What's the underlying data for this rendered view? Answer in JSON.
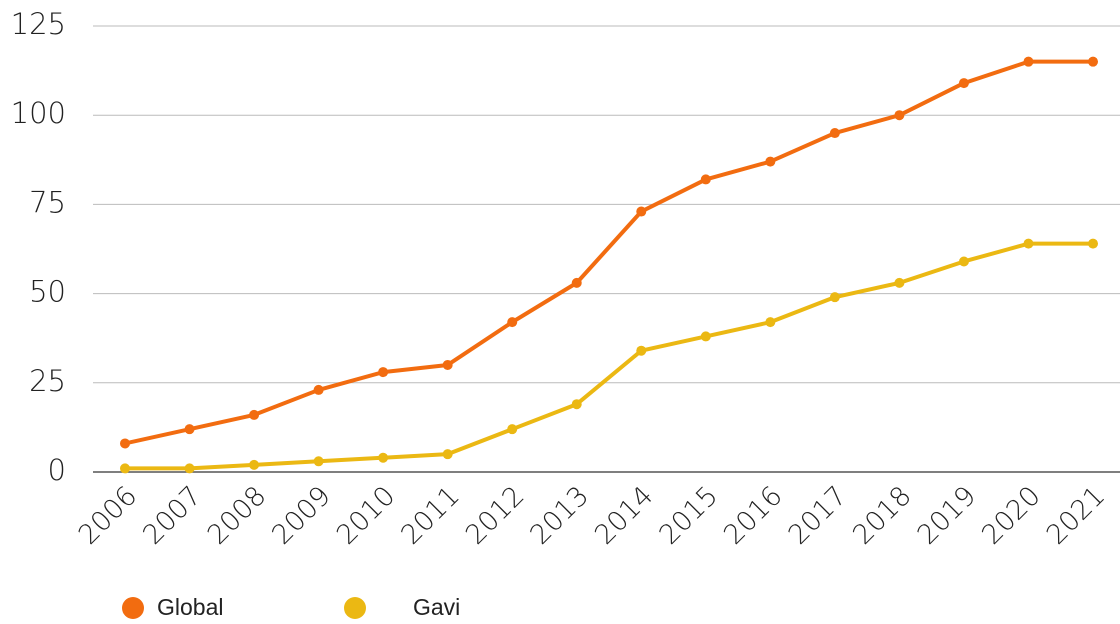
{
  "chart_data": {
    "type": "line",
    "categories": [
      "2006",
      "2007",
      "2008",
      "2009",
      "2010",
      "2011",
      "2012",
      "2013",
      "2014",
      "2015",
      "2016",
      "2017",
      "2018",
      "2019",
      "2020",
      "2021"
    ],
    "series": [
      {
        "name": "Global",
        "color": "#f26c10",
        "values": [
          8,
          12,
          16,
          23,
          28,
          30,
          42,
          53,
          73,
          82,
          87,
          95,
          100,
          109,
          115,
          115
        ]
      },
      {
        "name": "Gavi",
        "color": "#ebb813",
        "values": [
          1,
          1,
          2,
          3,
          4,
          5,
          12,
          19,
          34,
          38,
          42,
          49,
          53,
          59,
          64,
          64
        ]
      }
    ],
    "ylim": [
      0,
      125
    ],
    "yticks": [
      0,
      25,
      50,
      75,
      100,
      125
    ],
    "grid": true
  }
}
